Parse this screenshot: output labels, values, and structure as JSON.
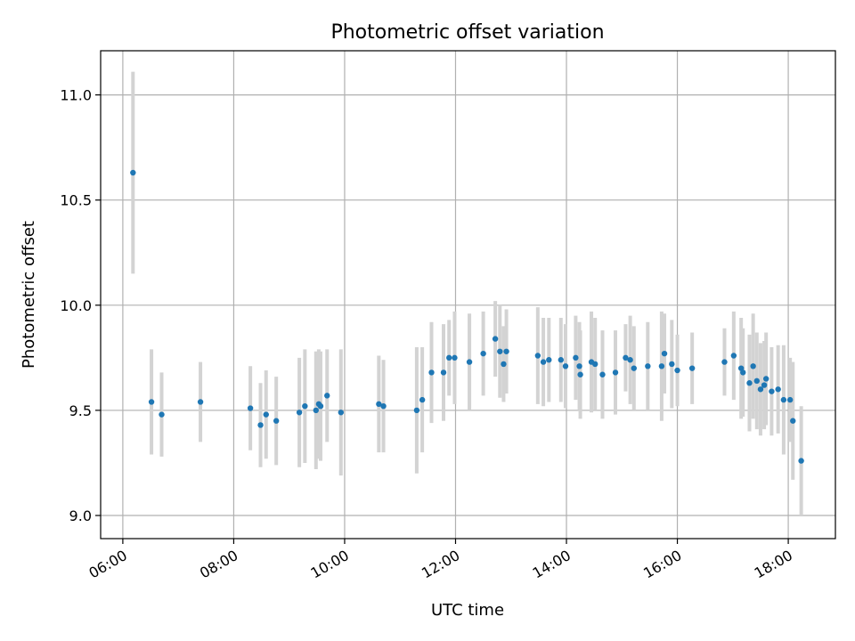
{
  "chart_data": {
    "type": "scatter",
    "title": "Photometric offset variation",
    "xlabel": "UTC time",
    "ylabel": "Photometric offset",
    "xlim": [
      "05:36",
      "18:51"
    ],
    "ylim": [
      8.89,
      11.21
    ],
    "xticks": [
      "06:00",
      "08:00",
      "10:00",
      "12:00",
      "14:00",
      "16:00",
      "18:00"
    ],
    "yticks": [
      "9.0",
      "9.5",
      "10.0",
      "10.5",
      "11.0"
    ],
    "grid": true,
    "colors": {
      "point": "#1f77b4",
      "errorbar": "#d3d3d3"
    },
    "series": [
      {
        "x": [
          "06:11",
          "06:31",
          "06:42",
          "07:24",
          "08:18",
          "08:29",
          "08:35",
          "08:46",
          "09:11",
          "09:17",
          "09:29",
          "09:32",
          "09:34",
          "09:41",
          "09:56",
          "10:37",
          "10:42",
          "11:18",
          "11:24",
          "11:34",
          "11:47",
          "11:53",
          "11:59",
          "12:15",
          "12:30",
          "12:43",
          "12:48",
          "12:52",
          "12:55",
          "13:29",
          "13:35",
          "13:41",
          "13:54",
          "13:59",
          "14:10",
          "14:14",
          "14:15",
          "14:27",
          "14:31",
          "14:39",
          "14:53",
          "15:04",
          "15:09",
          "15:13",
          "15:28",
          "15:43",
          "15:46",
          "15:54",
          "16:00",
          "16:16",
          "16:51",
          "17:01",
          "17:09",
          "17:11",
          "17:18",
          "17:22",
          "17:26",
          "17:30",
          "17:34",
          "17:36",
          "17:42",
          "17:49",
          "17:55",
          "18:02",
          "18:05",
          "18:14"
        ],
        "y": [
          10.63,
          9.54,
          9.48,
          9.54,
          9.51,
          9.43,
          9.48,
          9.45,
          9.49,
          9.52,
          9.5,
          9.53,
          9.52,
          9.57,
          9.49,
          9.53,
          9.52,
          9.5,
          9.55,
          9.68,
          9.68,
          9.75,
          9.75,
          9.73,
          9.77,
          9.84,
          9.78,
          9.72,
          9.78,
          9.76,
          9.73,
          9.74,
          9.74,
          9.71,
          9.75,
          9.71,
          9.67,
          9.73,
          9.72,
          9.67,
          9.68,
          9.75,
          9.74,
          9.7,
          9.71,
          9.71,
          9.77,
          9.72,
          9.69,
          9.7,
          9.73,
          9.76,
          9.7,
          9.68,
          9.63,
          9.71,
          9.64,
          9.6,
          9.62,
          9.65,
          9.59,
          9.6,
          9.55,
          9.55,
          9.45,
          9.26
        ],
        "yerr": [
          0.48,
          0.25,
          0.2,
          0.19,
          0.2,
          0.2,
          0.21,
          0.21,
          0.26,
          0.27,
          0.28,
          0.26,
          0.26,
          0.22,
          0.3,
          0.23,
          0.22,
          0.3,
          0.25,
          0.24,
          0.23,
          0.18,
          0.22,
          0.23,
          0.2,
          0.18,
          0.22,
          0.18,
          0.2,
          0.23,
          0.21,
          0.2,
          0.2,
          0.2,
          0.2,
          0.21,
          0.21,
          0.24,
          0.22,
          0.21,
          0.2,
          0.16,
          0.21,
          0.2,
          0.21,
          0.26,
          0.19,
          0.21,
          0.17,
          0.17,
          0.16,
          0.21,
          0.24,
          0.21,
          0.23,
          0.25,
          0.23,
          0.22,
          0.21,
          0.22,
          0.21,
          0.21,
          0.26,
          0.2,
          0.28,
          0.26
        ]
      }
    ]
  }
}
